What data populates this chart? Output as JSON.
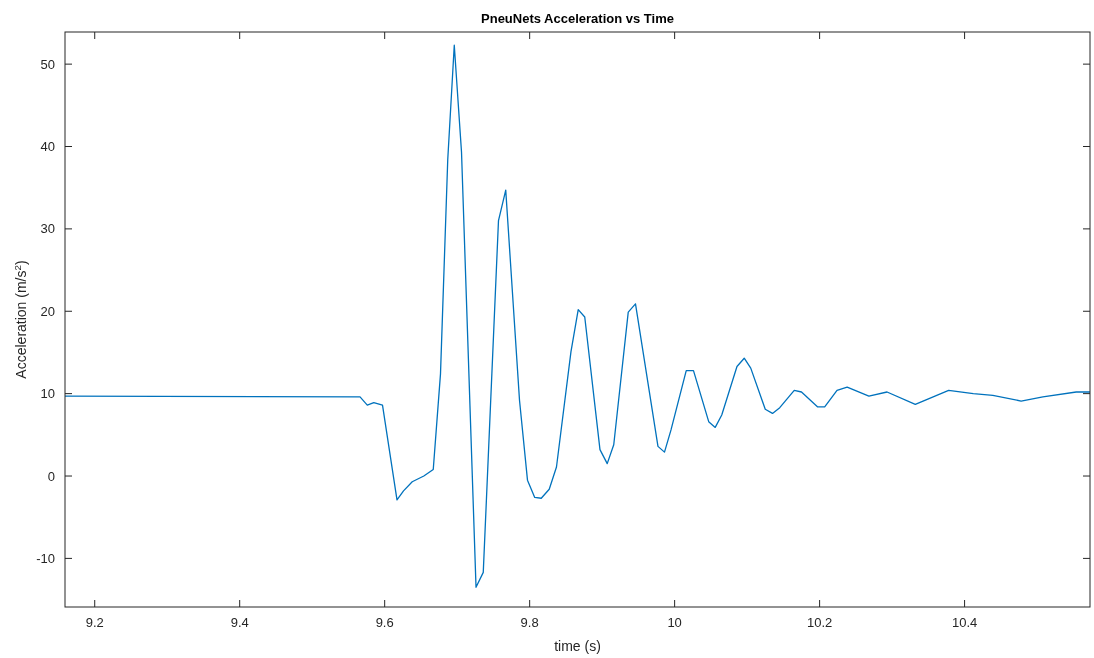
{
  "chart_data": {
    "type": "line",
    "title": "PneuNets Acceleration vs Time",
    "xlabel": "time (s)",
    "ylabel": "Acceleration (m/s$^{2}$)",
    "xlim": [
      9.159,
      10.573
    ],
    "ylim": [
      -15.9,
      53.9
    ],
    "xticks": [
      9.2,
      9.4,
      9.6,
      9.8,
      {
        "value": 10,
        "label": "10"
      },
      10.2,
      10.4
    ],
    "yticks": [
      -10,
      0,
      10,
      20,
      30,
      40,
      50
    ],
    "grid": false,
    "series": [
      {
        "color": "#0072bd",
        "x": [
          9.159,
          9.566,
          9.576,
          9.585,
          9.597,
          9.617,
          9.626,
          9.638,
          9.654,
          9.667,
          9.677,
          9.687,
          9.696,
          9.706,
          9.726,
          9.736,
          9.757,
          9.767,
          9.786,
          9.797,
          9.807,
          9.816,
          9.827,
          9.837,
          9.857,
          9.867,
          9.876,
          9.897,
          9.907,
          9.916,
          9.936,
          9.946,
          9.977,
          9.986,
          9.995,
          10.016,
          10.026,
          10.047,
          10.056,
          10.065,
          10.086,
          10.096,
          10.105,
          10.125,
          10.135,
          10.145,
          10.165,
          10.175,
          10.197,
          10.207,
          10.224,
          10.238,
          10.268,
          10.293,
          10.332,
          10.378,
          10.412,
          10.439,
          10.478,
          10.508,
          10.554,
          10.573
        ],
        "values": [
          9.7,
          9.6,
          8.6,
          8.9,
          8.6,
          -2.9,
          -1.8,
          -0.7,
          0.0,
          0.8,
          12.4,
          38.4,
          52.3,
          39.3,
          -13.5,
          -11.7,
          31.0,
          34.7,
          9.2,
          -0.5,
          -2.6,
          -2.7,
          -1.6,
          1.1,
          15.1,
          20.2,
          19.3,
          3.2,
          1.5,
          3.8,
          19.9,
          20.9,
          3.6,
          2.9,
          5.6,
          12.8,
          12.8,
          6.6,
          5.9,
          7.4,
          13.3,
          14.3,
          13.1,
          8.1,
          7.6,
          8.3,
          10.4,
          10.2,
          8.4,
          8.4,
          10.4,
          10.8,
          9.7,
          10.2,
          8.7,
          10.4,
          10.0,
          9.8,
          9.1,
          9.6,
          10.2,
          10.2
        ]
      }
    ]
  }
}
